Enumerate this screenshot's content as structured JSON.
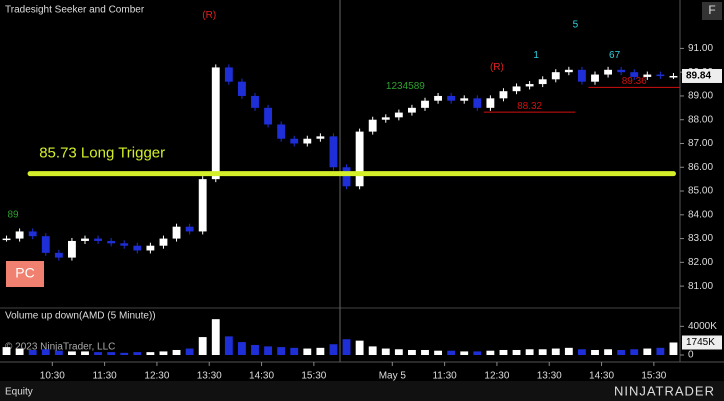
{
  "chart_data": {
    "type": "candlestick",
    "title": "Tradesight Seeker and Comber",
    "panel_button": "F",
    "instrument_label": "Equity",
    "brand": "NINJATRADER",
    "copyright": "© 2023 NinjaTrader, LLC",
    "xlim": [
      0,
      52
    ],
    "xticks": [
      {
        "value": 4,
        "label": "10:30"
      },
      {
        "value": 8,
        "label": "11:30"
      },
      {
        "value": 12,
        "label": "12:30"
      },
      {
        "value": 16,
        "label": "13:30"
      },
      {
        "value": 20,
        "label": "14:30"
      },
      {
        "value": 24,
        "label": "15:30"
      },
      {
        "value": 30,
        "label": "May 5"
      },
      {
        "value": 34,
        "label": "11:30"
      },
      {
        "value": 38,
        "label": "12:30"
      },
      {
        "value": 42,
        "label": "13:30"
      },
      {
        "value": 46,
        "label": "14:30"
      },
      {
        "value": 50,
        "label": "15:30"
      }
    ],
    "session_break": 26,
    "ylim": [
      80.5,
      92.7
    ],
    "yticks": [
      {
        "value": 81,
        "label": "81.00"
      },
      {
        "value": 82,
        "label": "82.00"
      },
      {
        "value": 83,
        "label": "83.00"
      },
      {
        "value": 84,
        "label": "84.00"
      },
      {
        "value": 85,
        "label": "85.00"
      },
      {
        "value": 86,
        "label": "86.00"
      },
      {
        "value": 87,
        "label": "87.00"
      },
      {
        "value": 88,
        "label": "88.00"
      },
      {
        "value": 89,
        "label": "89.00"
      },
      {
        "value": 90,
        "label": "90.00"
      },
      {
        "value": 91,
        "label": "91.00"
      }
    ],
    "up_color": "#ffffff",
    "down_color": "#1f2fd8",
    "closes": [
      83.0,
      83.3,
      83.1,
      82.4,
      82.2,
      82.9,
      83.0,
      82.9,
      82.8,
      82.7,
      82.5,
      82.7,
      83.0,
      83.5,
      83.3,
      85.5,
      90.2,
      89.6,
      89.0,
      88.5,
      87.8,
      87.2,
      87.0,
      87.2,
      87.3,
      86.0,
      85.2,
      87.5,
      88.0,
      88.1,
      88.3,
      88.5,
      88.8,
      89.0,
      88.8,
      88.9,
      88.5,
      88.9,
      89.2,
      89.4,
      89.5,
      89.7,
      90.0,
      90.1,
      89.6,
      89.9,
      90.1,
      90.0,
      89.8,
      89.9,
      89.84,
      89.84
    ],
    "last_price": {
      "value": 89.84,
      "label": "89.84"
    },
    "trigger": {
      "value": 85.73,
      "text": "85.73 Long Trigger",
      "color": "#d4ef2a"
    },
    "levels": [
      {
        "value": 88.32,
        "label": "88.32",
        "from": 37,
        "to": 44,
        "color": "#d01010"
      },
      {
        "value": 89.36,
        "label": "89.36",
        "from": 45,
        "to": 52,
        "color": "#d01010"
      }
    ],
    "badge": "PC",
    "annotations": [
      {
        "text": "(R)",
        "x": 16,
        "y": 92.4,
        "color": "#e02020"
      },
      {
        "text": "89",
        "x": 1,
        "y": 84.0,
        "color": "#2ea02e"
      },
      {
        "text": "1234589",
        "x": 31,
        "y": 89.4,
        "color": "#2ea02e"
      },
      {
        "text": "(R)",
        "x": 38,
        "y": 90.2,
        "color": "#e02020"
      },
      {
        "text": "1",
        "x": 41,
        "y": 90.7,
        "color": "#30d0e0"
      },
      {
        "text": "5",
        "x": 44,
        "y": 92.0,
        "color": "#30d0e0"
      },
      {
        "text": "67",
        "x": 47,
        "y": 90.7,
        "color": "#30d0e0"
      }
    ],
    "volume": {
      "title": "Volume up down(AMD (5 Minute))",
      "ylim": [
        0,
        6000
      ],
      "yticks": [
        {
          "value": 0,
          "label": "0"
        },
        {
          "value": 4000,
          "label": "4000K"
        }
      ],
      "last": {
        "value": 1745,
        "label": "1745K"
      },
      "values": [
        1100,
        900,
        700,
        800,
        600,
        500,
        500,
        400,
        400,
        300,
        400,
        400,
        500,
        700,
        900,
        2500,
        5000,
        2600,
        1800,
        1400,
        1200,
        1100,
        1000,
        900,
        1000,
        1500,
        2200,
        2000,
        1200,
        900,
        800,
        700,
        700,
        600,
        600,
        500,
        500,
        600,
        700,
        700,
        800,
        800,
        900,
        1000,
        800,
        700,
        800,
        700,
        800,
        900,
        1000,
        1745
      ]
    }
  }
}
